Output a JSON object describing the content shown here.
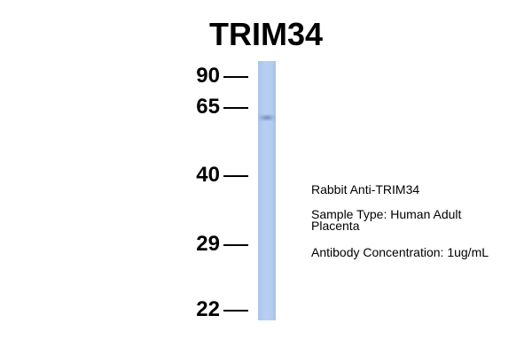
{
  "title": "TRIM34",
  "markers": [
    {
      "label": "90"
    },
    {
      "label": "65"
    },
    {
      "label": "40"
    },
    {
      "label": "29"
    },
    {
      "label": "22"
    }
  ],
  "lane": {
    "color": "#b3ccf0",
    "band_color": "#5f78aa"
  },
  "info": {
    "antibody": "Rabbit Anti-TRIM34",
    "sample_line1": "Sample Type: Human Adult",
    "sample_line2": "Placenta",
    "concentration": "Antibody Concentration: 1ug/mL"
  }
}
